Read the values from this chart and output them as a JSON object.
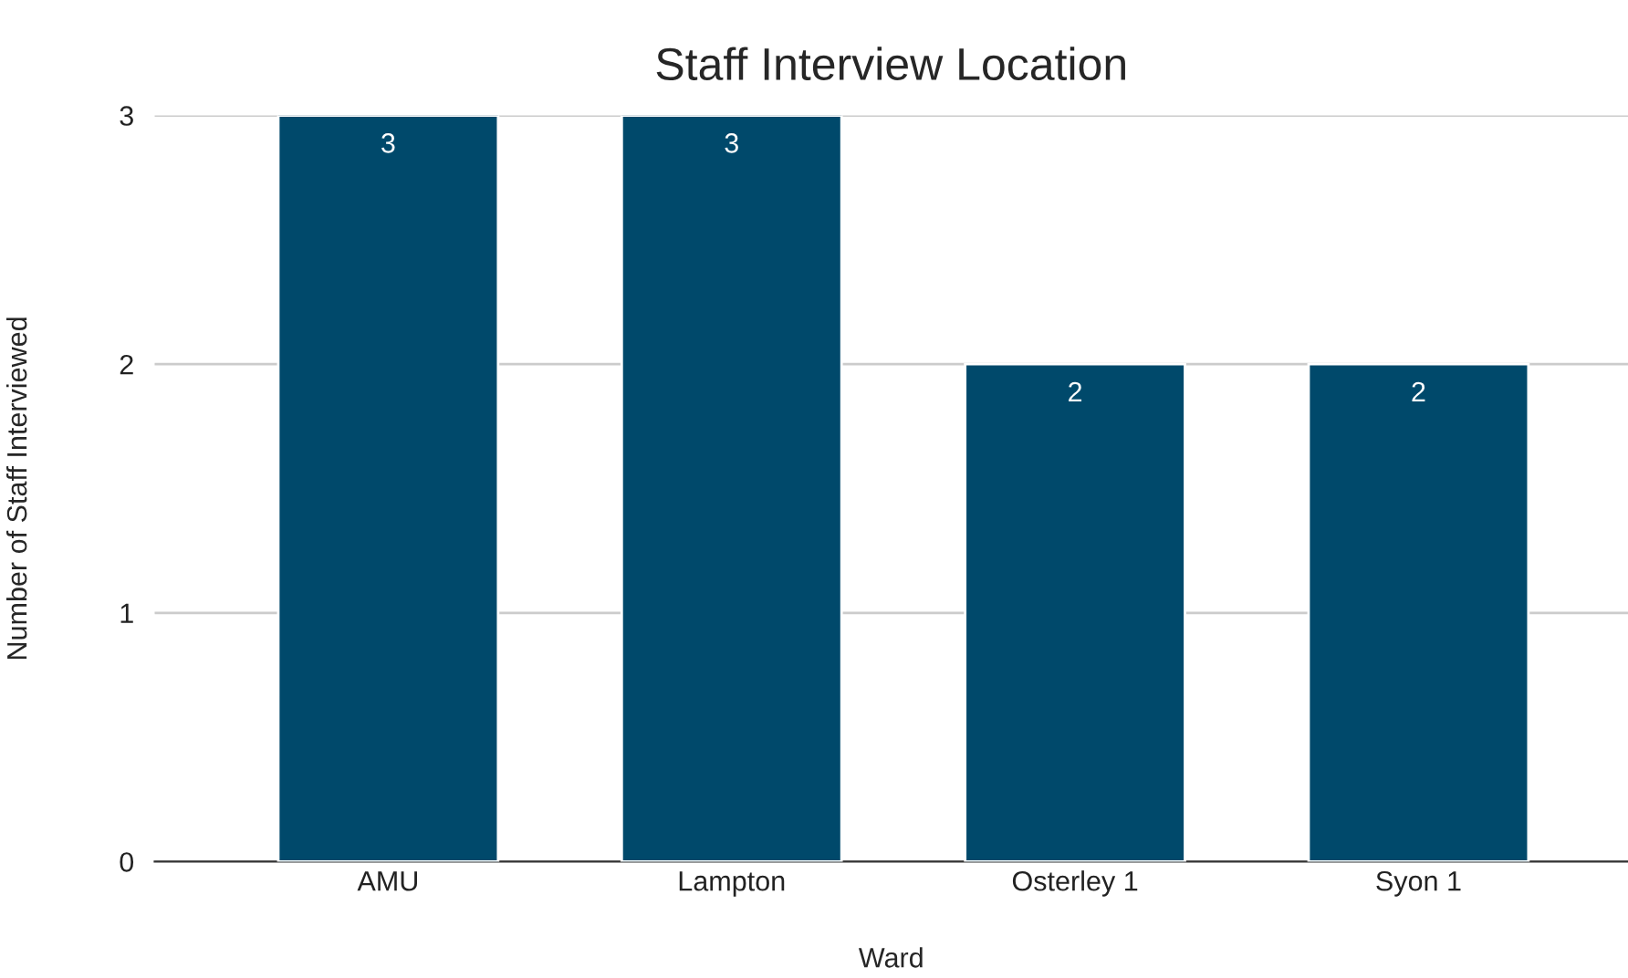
{
  "chart_data": {
    "type": "bar",
    "title": "Staff Interview Location",
    "xlabel": "Ward",
    "ylabel": "Number of Staff Interviewed",
    "categories": [
      "AMU",
      "Lampton",
      "Osterley 1",
      "Syon 1"
    ],
    "series": [
      {
        "color": "#00496b",
        "values": [
          3,
          3,
          2,
          2
        ]
      }
    ],
    "ylim": [
      0,
      3
    ],
    "yticks": [
      0,
      1,
      2,
      3
    ],
    "grid": "y",
    "data_labels": true,
    "legend": false
  }
}
